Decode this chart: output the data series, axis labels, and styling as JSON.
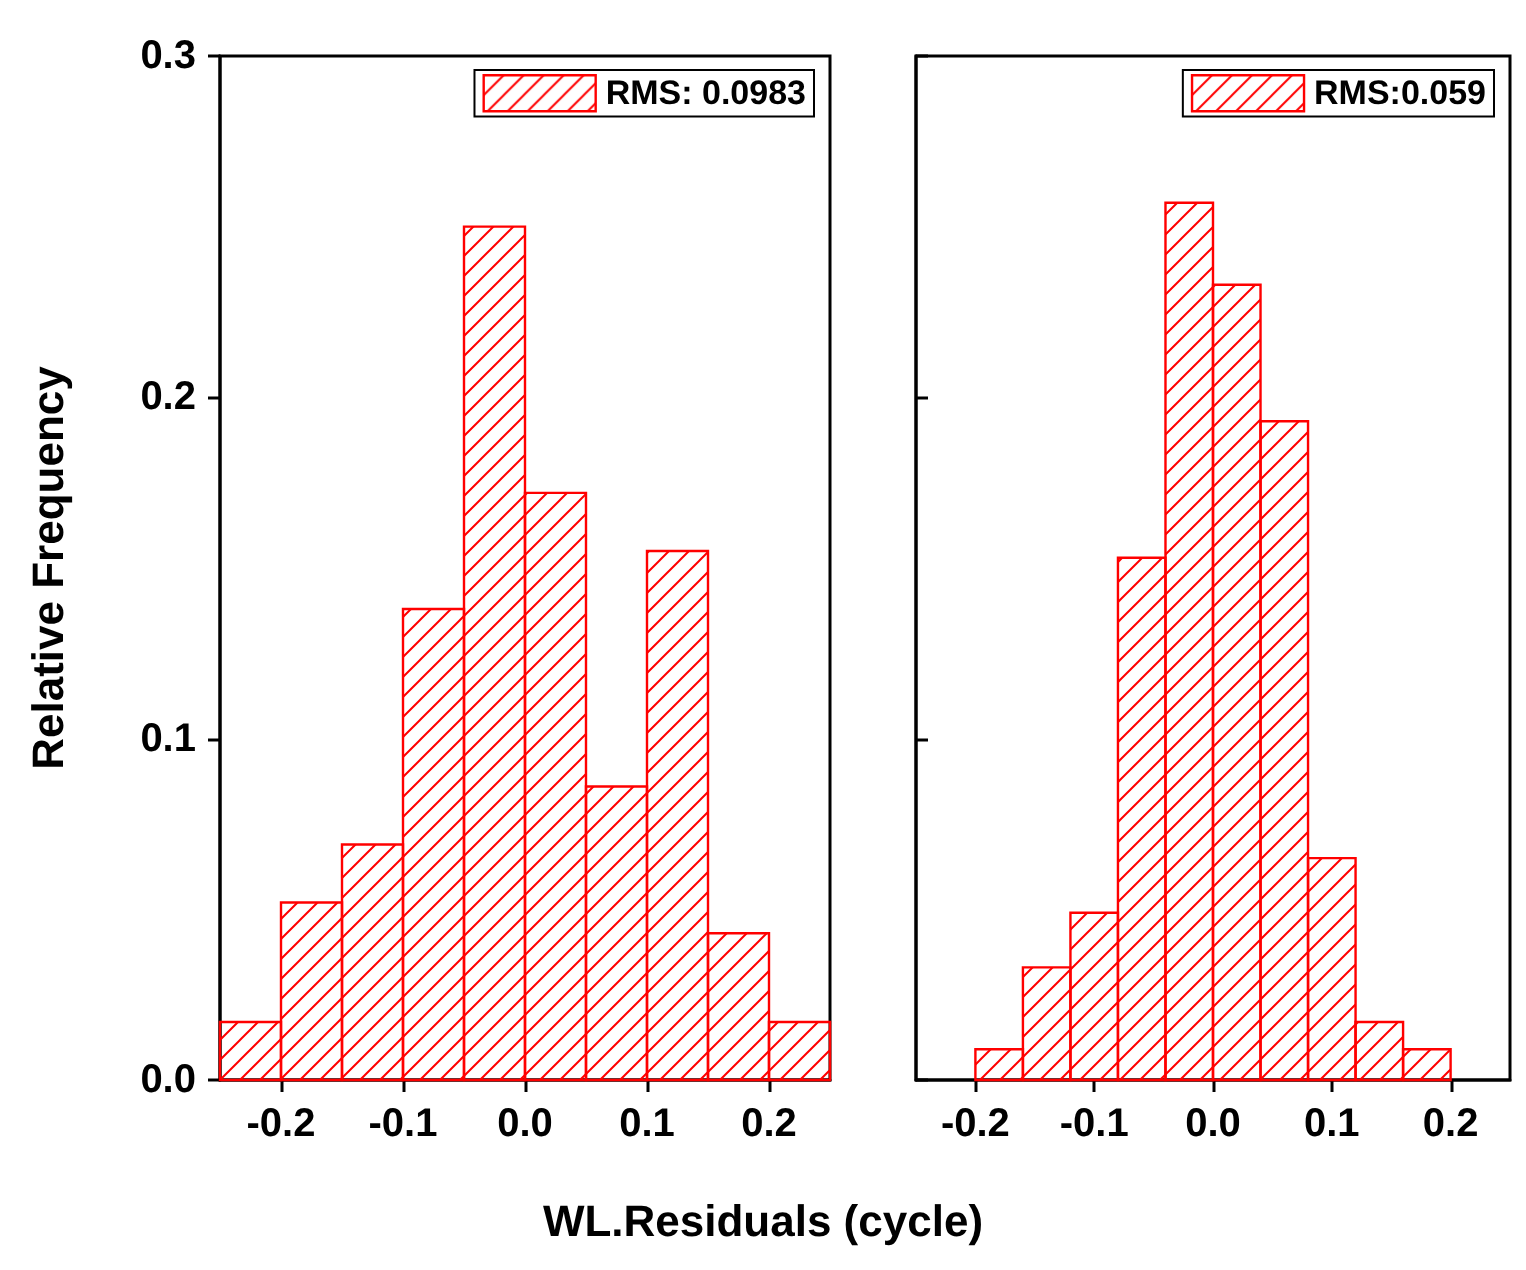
{
  "chart_data": [
    {
      "type": "histogram",
      "ylabel": "Relative Frequency",
      "xlabel": "WL.Residuals (cycle)",
      "bins": [
        -0.25,
        -0.2,
        -0.15,
        -0.1,
        -0.05,
        0,
        0.05,
        0.1,
        0.15,
        0.2,
        0.25
      ],
      "series": [
        {
          "name": "RMS: 0.0983",
          "color": "#ff0000",
          "values": [
            0.017,
            0.052,
            0.069,
            0.138,
            0.25,
            0.172,
            0.086,
            0.155,
            0.043,
            0.017
          ]
        }
      ],
      "xlim": [
        -0.25,
        0.25
      ],
      "xticks": [
        -0.2,
        -0.1,
        {
          "value": 0,
          "label": "0.0"
        },
        0.1,
        0.2
      ],
      "ylim": [
        0,
        0.3
      ],
      "yticks": [
        {
          "value": 0,
          "label": "0.0"
        },
        0.1,
        0.2,
        0.3
      ],
      "legend": "top right",
      "grid": false
    },
    {
      "type": "histogram",
      "bins": [
        -0.2,
        -0.16,
        -0.12,
        -0.08,
        -0.04,
        0,
        0.04,
        0.08,
        0.12,
        0.16,
        0.2
      ],
      "series": [
        {
          "name": "RMS:0.059",
          "color": "#ff0000",
          "values": [
            0.009,
            0.033,
            0.049,
            0.153,
            0.257,
            0.233,
            0.193,
            0.065,
            0.017,
            0.009
          ]
        }
      ],
      "xlim": [
        -0.25,
        0.25
      ],
      "xticks": [
        -0.2,
        -0.1,
        {
          "value": 0,
          "label": "0.0"
        },
        0.1,
        0.2
      ],
      "ylim": [
        0,
        0.3
      ],
      "yticks": [
        {
          "value": 0,
          "label": null
        },
        {
          "value": 0.1,
          "label": null
        },
        {
          "value": 0.2,
          "label": null
        },
        {
          "value": 0.3,
          "label": null
        }
      ],
      "tick_labels": "x",
      "legend": "top right",
      "grid": false
    }
  ]
}
